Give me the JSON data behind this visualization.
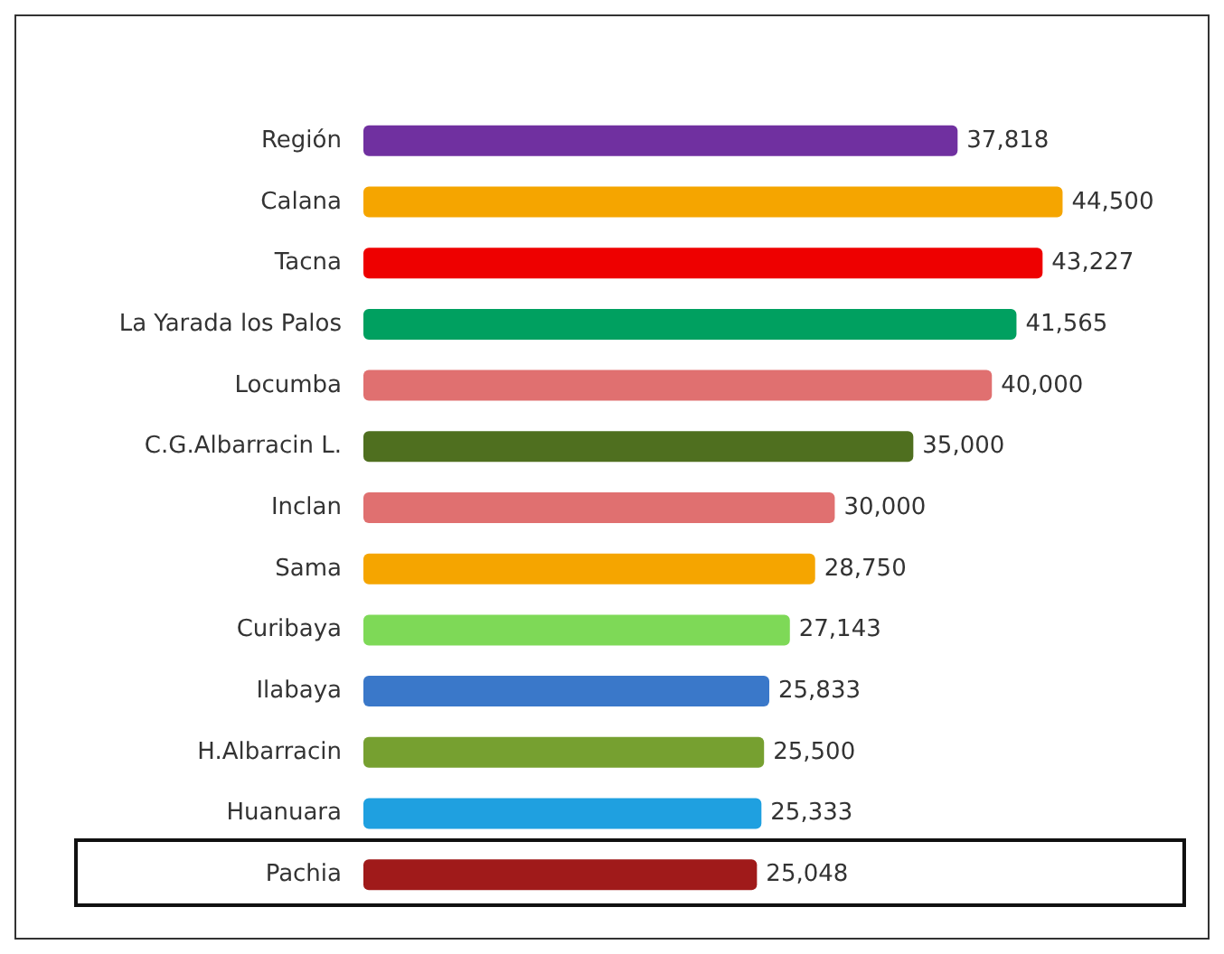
{
  "chart_data": {
    "type": "bar",
    "orientation": "horizontal",
    "value_labels": [
      "37,818",
      "44,500",
      "43,227",
      "41,565",
      "40,000",
      "35,000",
      "30,000",
      "28,750",
      "27,143",
      "25,833",
      "25,500",
      "25,333",
      "25,048"
    ],
    "categories": [
      "Región",
      "Calana",
      "Tacna",
      "La Yarada los Palos",
      "Locumba",
      "C.G.Albarracin L.",
      "Inclan",
      "Sama",
      "Curibaya",
      "Ilabaya",
      "H.Albarracin",
      "Huanuara",
      "Pachia"
    ],
    "values": [
      37818,
      44500,
      43227,
      41565,
      40000,
      35000,
      30000,
      28750,
      27143,
      25833,
      25500,
      25333,
      25048
    ],
    "colors": [
      "#7030a0",
      "#f5a500",
      "#ee0000",
      "#00a060",
      "#e07070",
      "#4f6f1f",
      "#e07070",
      "#f5a500",
      "#7ed957",
      "#3a78c9",
      "#76a030",
      "#1fa0e0",
      "#a01a1a"
    ]
  }
}
